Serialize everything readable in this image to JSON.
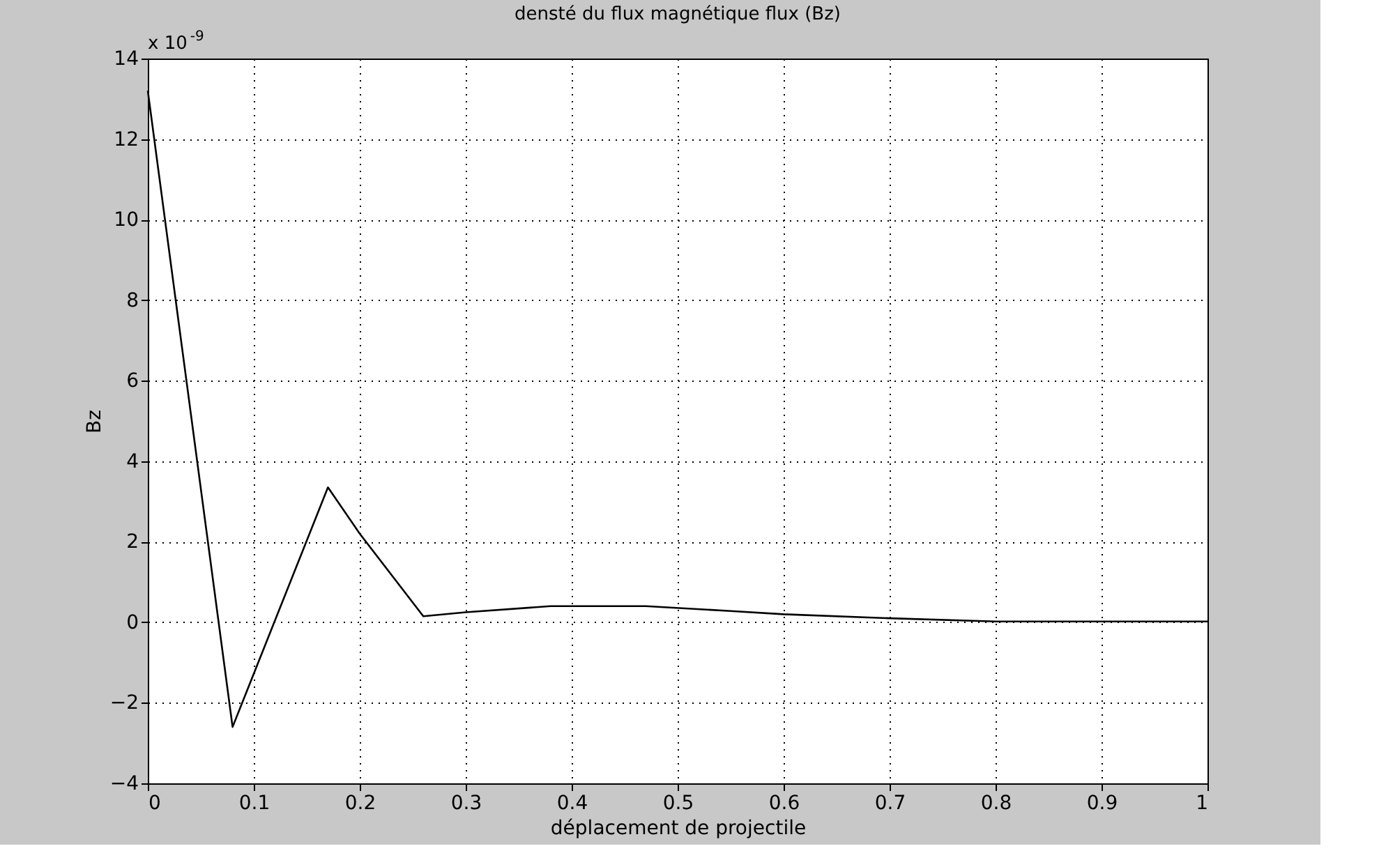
{
  "chart_data": {
    "type": "line",
    "title": "densté du flux magnétique flux (Bz)",
    "xlabel": "déplacement de projectile",
    "ylabel": "Bz",
    "annotations": [
      "x 10$^{-9}$"
    ],
    "series": [
      {
        "color": "#000000",
        "x": [
          0,
          0.08,
          0.17,
          0.2,
          0.26,
          0.3,
          0.38,
          0.47,
          0.55,
          0.6,
          0.7,
          0.8,
          0.9,
          1
        ],
        "values": [
          13.2,
          -2.6,
          3.35,
          2.2,
          0.15,
          0.25,
          0.4,
          0.4,
          0.28,
          0.2,
          0.1,
          0.02,
          0.02,
          0.02
        ]
      }
    ],
    "xlim": [
      0,
      1
    ],
    "xticks": [
      0,
      0.1,
      0.2,
      0.3,
      0.4,
      0.5,
      0.6,
      0.7,
      0.8,
      0.9,
      1
    ],
    "ylim": [
      -4,
      14
    ],
    "yticks": [
      -4,
      -2,
      0,
      2,
      4,
      6,
      8,
      10,
      12,
      14
    ],
    "grid": true,
    "line_style": "solid",
    "marker": "none"
  }
}
